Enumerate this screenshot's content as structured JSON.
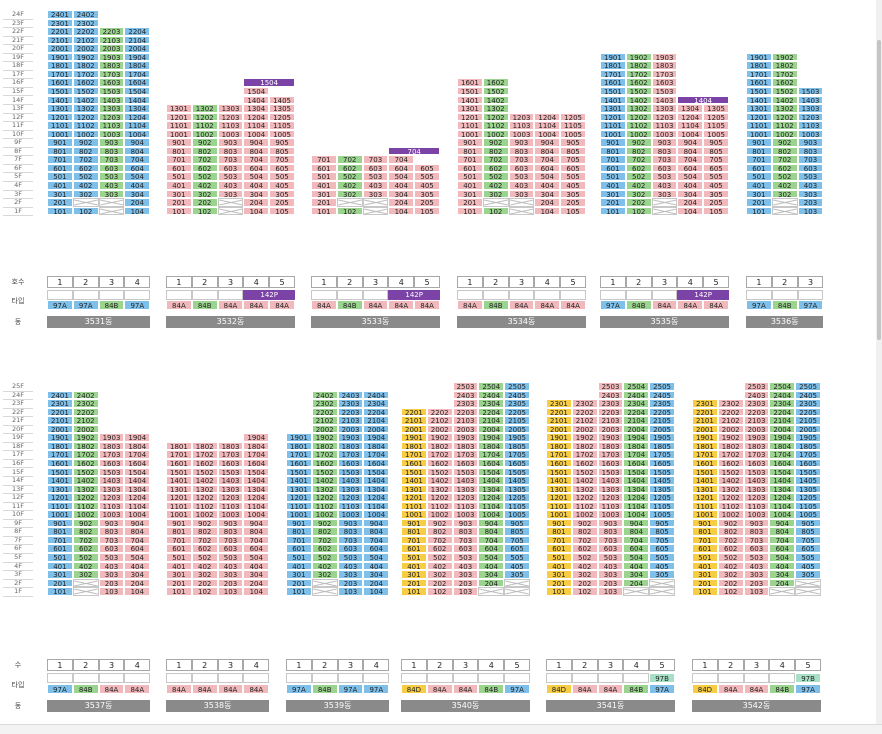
{
  "colors": {
    "97A": "#7fc0ea",
    "84B": "#9bd48e",
    "84A": "#f2b9bc",
    "84D": "#f7cd46",
    "97B": "#a8dfc7",
    "purple": "#7b43a6",
    "gray": "#8a8a8a"
  },
  "row_labels": {
    "ho": "호수",
    "type": "타입",
    "dong": "동",
    "ho_short": "수"
  },
  "top": {
    "floors": [
      "24F",
      "23F",
      "22F",
      "21F",
      "20F",
      "19F",
      "18F",
      "17F",
      "16F",
      "15F",
      "14F",
      "13F",
      "12F",
      "11F",
      "10F",
      "9F",
      "8F",
      "7F",
      "6F",
      "5F",
      "4F",
      "3F",
      "2F",
      "1F"
    ],
    "buildings": [
      {
        "name": "3531동",
        "lines": [
          "1",
          "2",
          "3",
          "4"
        ],
        "types": [
          "97A",
          "97A",
          "84B",
          "97A"
        ],
        "tops": [
          24,
          24,
          22,
          22
        ],
        "empty": [
          [
            2,
            2
          ],
          [
            2,
            3
          ],
          [
            1,
            3
          ]
        ]
      },
      {
        "name": "3532동",
        "lines": [
          "1",
          "2",
          "3",
          "4",
          "5"
        ],
        "types": [
          "84A",
          "84B",
          "84A",
          "84A",
          "84A"
        ],
        "tops": [
          13,
          13,
          13,
          15,
          14
        ],
        "empty": [
          [
            1,
            3
          ],
          [
            2,
            3
          ]
        ],
        "badge_label": "142P",
        "badge_lines": [
          4,
          5
        ],
        "top_label": "1504",
        "top_label_lines": [
          4,
          5
        ]
      },
      {
        "name": "3533동",
        "lines": [
          "1",
          "2",
          "3",
          "4",
          "5"
        ],
        "types": [
          "84A",
          "84B",
          "84A",
          "84A",
          "84A"
        ],
        "tops": [
          7,
          7,
          7,
          7,
          6
        ],
        "empty": [
          [
            2,
            2
          ],
          [
            2,
            3
          ],
          [
            1,
            3
          ]
        ],
        "badge_label": "142P",
        "badge_lines": [
          4,
          5
        ],
        "top_label": "704",
        "top_label_lines": [
          4,
          5
        ]
      },
      {
        "name": "3534동",
        "lines": [
          "1",
          "2",
          "3",
          "4",
          "5"
        ],
        "types": [
          "84A",
          "84B",
          "84A",
          "84A",
          "84A"
        ],
        "tops": [
          16,
          16,
          12,
          12,
          12
        ],
        "empty": [
          [
            2,
            2
          ],
          [
            2,
            3
          ],
          [
            1,
            3
          ]
        ]
      },
      {
        "name": "3535동",
        "lines": [
          "1",
          "2",
          "3",
          "4",
          "5"
        ],
        "types": [
          "97A",
          "84B",
          "84A",
          "84A",
          "84A"
        ],
        "tops": [
          19,
          19,
          19,
          13,
          13
        ],
        "empty": [
          [
            2,
            3
          ],
          [
            1,
            3
          ]
        ],
        "badge_label": "142P",
        "badge_lines": [
          4,
          5
        ],
        "top_label": "1404",
        "top_label_lines": [
          4,
          5
        ]
      },
      {
        "name": "3536동",
        "lines": [
          "1",
          "2",
          "3"
        ],
        "types": [
          "97A",
          "84B",
          "97A"
        ],
        "tops": [
          19,
          19,
          15
        ],
        "empty": [
          [
            2,
            2
          ],
          [
            1,
            2
          ]
        ]
      }
    ]
  },
  "bottom": {
    "floors": [
      "25F",
      "24F",
      "23F",
      "22F",
      "21F",
      "20F",
      "19F",
      "18F",
      "17F",
      "16F",
      "15F",
      "14F",
      "13F",
      "12F",
      "11F",
      "10F",
      "9F",
      "8F",
      "7F",
      "6F",
      "5F",
      "4F",
      "3F",
      "2F",
      "1F"
    ],
    "buildings": [
      {
        "name": "3537동",
        "lines": [
          "1",
          "2",
          "3",
          "4"
        ],
        "types": [
          "97A",
          "84B",
          "84A",
          "84A"
        ],
        "tops": [
          24,
          24,
          19,
          19
        ],
        "empty": [
          [
            2,
            2
          ],
          [
            1,
            2
          ]
        ]
      },
      {
        "name": "3538동",
        "lines": [
          "1",
          "2",
          "3",
          "4"
        ],
        "types": [
          "84A",
          "84A",
          "84A",
          "84A"
        ],
        "tops": [
          18,
          18,
          18,
          19
        ],
        "empty": []
      },
      {
        "name": "3539동",
        "lines": [
          "1",
          "2",
          "3",
          "4"
        ],
        "types": [
          "97A",
          "84B",
          "97A",
          "97A"
        ],
        "tops": [
          19,
          24,
          24,
          24
        ],
        "empty": [
          [
            2,
            2
          ],
          [
            1,
            2
          ]
        ]
      },
      {
        "name": "3540동",
        "lines": [
          "1",
          "2",
          "3",
          "4",
          "5"
        ],
        "types": [
          "84D",
          "84A",
          "84A",
          "84B",
          "97A"
        ],
        "tops": [
          22,
          22,
          25,
          25,
          25
        ],
        "empty": [
          [
            2,
            5
          ],
          [
            1,
            4
          ],
          [
            1,
            5
          ]
        ]
      },
      {
        "name": "3541동",
        "lines": [
          "1",
          "2",
          "3",
          "4",
          "5"
        ],
        "types": [
          "84D",
          "84A",
          "84A",
          "84B",
          "97A"
        ],
        "tops": [
          23,
          23,
          25,
          25,
          25
        ],
        "empty": [
          [
            2,
            5
          ],
          [
            1,
            4
          ],
          [
            1,
            5
          ]
        ],
        "subtype": "97B",
        "subtype_line": 5
      },
      {
        "name": "3542동",
        "lines": [
          "1",
          "2",
          "3",
          "4",
          "5"
        ],
        "types": [
          "84D",
          "84A",
          "84A",
          "84B",
          "97A"
        ],
        "tops": [
          23,
          23,
          25,
          25,
          25
        ],
        "empty": [
          [
            2,
            5
          ],
          [
            1,
            4
          ],
          [
            1,
            5
          ]
        ],
        "subtype": "97B",
        "subtype_line": 5
      }
    ]
  }
}
